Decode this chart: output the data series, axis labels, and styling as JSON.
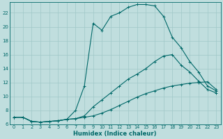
{
  "xlabel": "Humidex (Indice chaleur)",
  "bg_color": "#c0dede",
  "grid_color": "#a0c8c8",
  "line_color": "#006868",
  "xlim": [
    -0.5,
    23.5
  ],
  "ylim": [
    6,
    23.5
  ],
  "xticks": [
    0,
    1,
    2,
    3,
    4,
    5,
    6,
    7,
    8,
    9,
    10,
    11,
    12,
    13,
    14,
    15,
    16,
    17,
    18,
    19,
    20,
    21,
    22,
    23
  ],
  "yticks": [
    6,
    8,
    10,
    12,
    14,
    16,
    18,
    20,
    22
  ],
  "line1_x": [
    0,
    1,
    2,
    3,
    4,
    5,
    6,
    7,
    8,
    9,
    10,
    11,
    12,
    13,
    14,
    15,
    16,
    17,
    18,
    19,
    20,
    21,
    22,
    23
  ],
  "line1_y": [
    7.0,
    7.0,
    6.4,
    6.3,
    6.4,
    6.5,
    6.7,
    6.8,
    7.0,
    7.2,
    7.6,
    8.1,
    8.7,
    9.3,
    9.9,
    10.4,
    10.8,
    11.2,
    11.5,
    11.7,
    11.9,
    12.0,
    12.1,
    11.0
  ],
  "line2_x": [
    0,
    1,
    2,
    3,
    4,
    5,
    6,
    7,
    8,
    9,
    10,
    11,
    12,
    13,
    14,
    15,
    16,
    17,
    18,
    19,
    20,
    21,
    22,
    23
  ],
  "line2_y": [
    7.0,
    7.0,
    6.4,
    6.3,
    6.4,
    6.5,
    6.7,
    6.8,
    7.2,
    8.5,
    9.5,
    10.5,
    11.5,
    12.5,
    13.2,
    14.0,
    15.0,
    15.8,
    16.0,
    14.5,
    13.5,
    12.2,
    11.0,
    10.5
  ],
  "line3_x": [
    0,
    1,
    2,
    3,
    4,
    5,
    6,
    7,
    8,
    9,
    10,
    11,
    12,
    13,
    14,
    15,
    16,
    17,
    18,
    19,
    20,
    21,
    22,
    23
  ],
  "line3_y": [
    7.0,
    7.0,
    6.4,
    6.3,
    6.4,
    6.5,
    6.7,
    8.0,
    11.5,
    20.5,
    19.5,
    21.5,
    22.0,
    22.8,
    23.2,
    23.2,
    23.0,
    21.5,
    18.5,
    17.0,
    15.0,
    13.5,
    11.5,
    10.8
  ],
  "xlabel_fontsize": 6,
  "tick_fontsize": 4.8
}
